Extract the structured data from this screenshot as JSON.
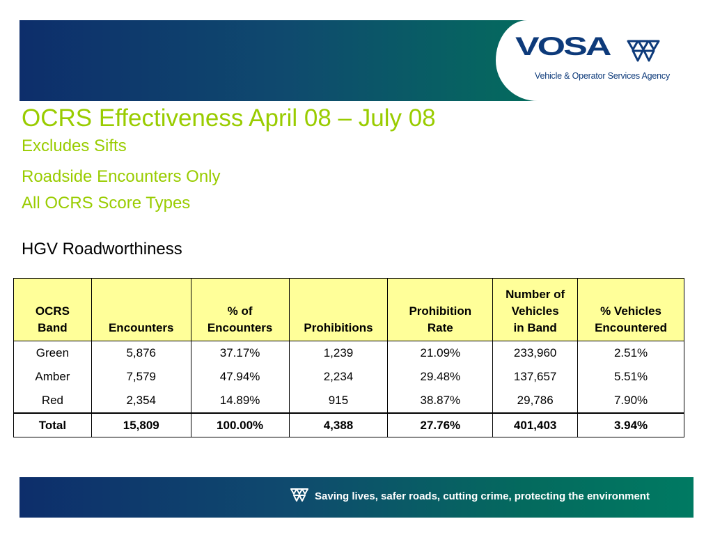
{
  "header": {
    "logo_word": "VOSA",
    "logo_tagline": "Vehicle & Operator Services Agency",
    "brand_color": "#0d3a7a"
  },
  "title": "OCRS Effectiveness April 08 – July 08",
  "subtitles": [
    "Excludes Sifts",
    "Roadside Encounters Only",
    "All OCRS Score Types"
  ],
  "section_heading": "HGV Roadworthiness",
  "table": {
    "headers": [
      [
        "OCRS",
        "Band"
      ],
      [
        "Encounters"
      ],
      [
        "% of",
        "Encounters"
      ],
      [
        "Prohibitions"
      ],
      [
        "Prohibition",
        "Rate"
      ],
      [
        "Number of",
        "Vehicles",
        "in Band"
      ],
      [
        "% Vehicles",
        "Encountered"
      ]
    ],
    "rows": [
      [
        "Green",
        "5,876",
        "37.17%",
        "1,239",
        "21.09%",
        "233,960",
        "2.51%"
      ],
      [
        "Amber",
        "7,579",
        "47.94%",
        "2,234",
        "29.48%",
        "137,657",
        "5.51%"
      ],
      [
        "Red",
        "2,354",
        "14.89%",
        "915",
        "38.87%",
        "29,786",
        "7.90%"
      ]
    ],
    "total": [
      "Total",
      "15,809",
      "100.00%",
      "4,388",
      "27.76%",
      "401,403",
      "3.94%"
    ],
    "header_bg": "#ffff99"
  },
  "footer": {
    "slogan": "Saving lives, safer roads, cutting crime, protecting the environment"
  },
  "colors": {
    "title_green": "#99cc00",
    "band_blue": "#0d2e6b",
    "band_teal": "#007a62"
  }
}
